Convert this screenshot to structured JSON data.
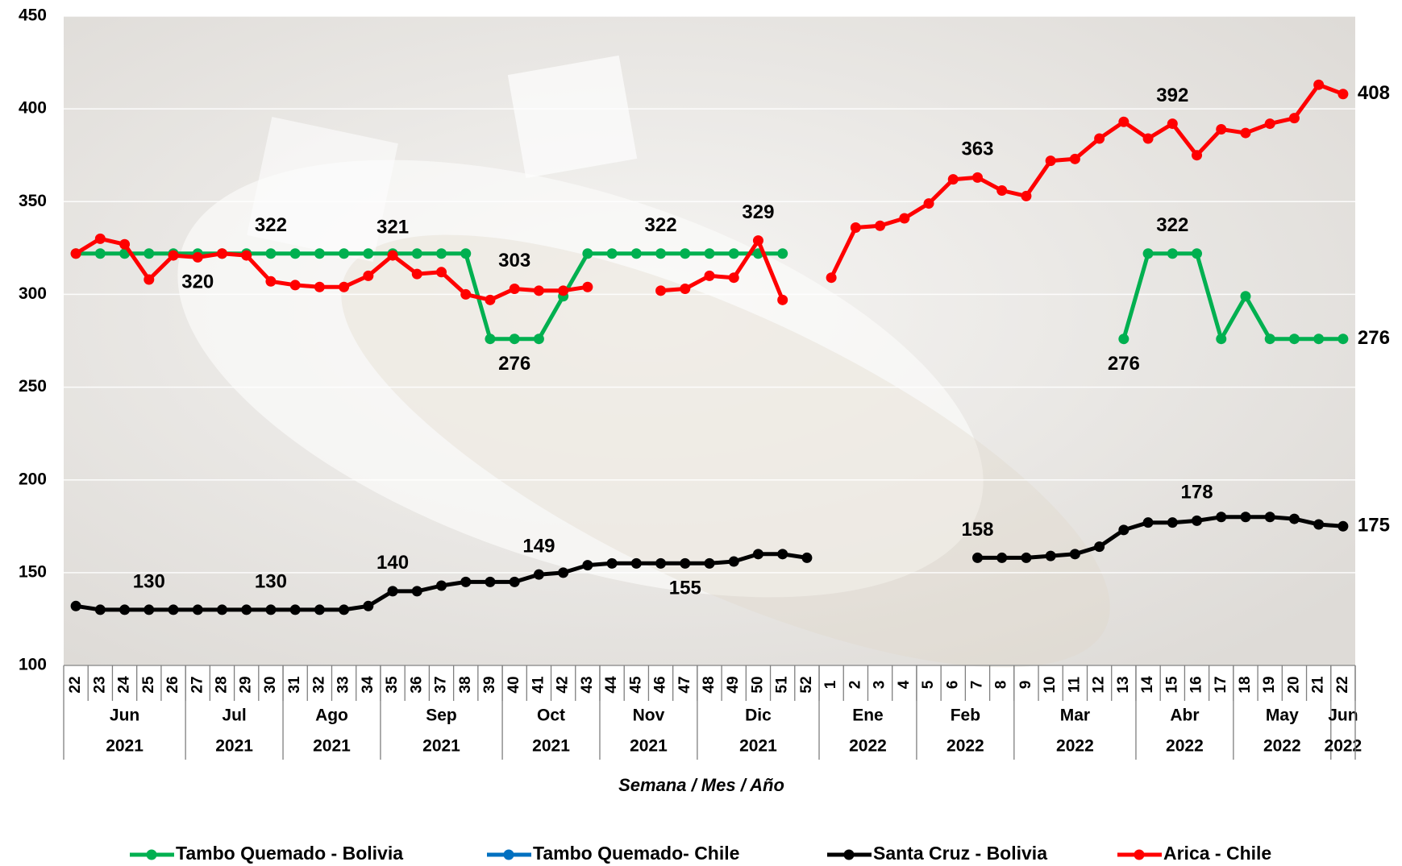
{
  "chart_data": {
    "type": "line",
    "x_label": "Semana / Mes / Año",
    "categories": [
      "22",
      "23",
      "24",
      "25",
      "26",
      "27",
      "28",
      "29",
      "30",
      "31",
      "32",
      "33",
      "34",
      "35",
      "36",
      "37",
      "38",
      "39",
      "40",
      "41",
      "42",
      "43",
      "44",
      "45",
      "46",
      "47",
      "48",
      "49",
      "50",
      "51",
      "52",
      "1",
      "2",
      "3",
      "4",
      "5",
      "6",
      "7",
      "8",
      "9",
      "10",
      "11",
      "12",
      "13",
      "14",
      "15",
      "16",
      "17",
      "18",
      "19",
      "20",
      "21",
      "22"
    ],
    "months": [
      "Jun",
      null,
      null,
      null,
      null,
      "Jul",
      null,
      null,
      null,
      "Ago",
      null,
      null,
      null,
      "Sep",
      null,
      null,
      null,
      null,
      "Oct",
      null,
      null,
      null,
      "Nov",
      null,
      null,
      null,
      "Dic",
      null,
      null,
      null,
      null,
      "Ene",
      null,
      null,
      null,
      "Feb",
      null,
      null,
      null,
      "Mar",
      null,
      null,
      null,
      null,
      "Abr",
      null,
      null,
      null,
      "May",
      null,
      null,
      null,
      "Jun"
    ],
    "years": [
      "2021",
      null,
      null,
      null,
      null,
      "2021",
      null,
      null,
      null,
      "2021",
      null,
      null,
      null,
      "2021",
      null,
      null,
      null,
      null,
      "2021",
      null,
      null,
      null,
      "2021",
      null,
      null,
      null,
      "2021",
      null,
      null,
      null,
      null,
      "2022",
      null,
      null,
      null,
      "2022",
      null,
      null,
      null,
      "2022",
      null,
      null,
      null,
      null,
      "2022",
      null,
      null,
      null,
      "2022",
      null,
      null,
      null,
      "2022"
    ],
    "ylim": [
      100,
      450
    ],
    "yticks": [
      100,
      150,
      200,
      250,
      300,
      350,
      400,
      450
    ],
    "grid": true,
    "legend": "bottom",
    "series": [
      {
        "name": "Tambo Quemado - Bolivia",
        "color": "#00b050",
        "values": [
          322,
          322,
          322,
          322,
          322,
          322,
          322,
          322,
          322,
          322,
          322,
          322,
          322,
          322,
          322,
          322,
          322,
          276,
          276,
          276,
          299,
          322,
          322,
          322,
          322,
          322,
          322,
          322,
          322,
          322,
          null,
          null,
          null,
          null,
          null,
          null,
          null,
          null,
          null,
          null,
          null,
          null,
          null,
          276,
          322,
          322,
          322,
          276,
          299,
          276,
          276,
          276,
          276
        ],
        "value_labels": [
          null,
          null,
          null,
          null,
          null,
          null,
          null,
          null,
          "322",
          null,
          null,
          null,
          null,
          null,
          null,
          null,
          null,
          null,
          "276",
          null,
          null,
          null,
          null,
          null,
          "322",
          null,
          null,
          null,
          null,
          null,
          null,
          null,
          null,
          null,
          null,
          null,
          null,
          null,
          null,
          null,
          null,
          null,
          null,
          "276",
          null,
          "322",
          null,
          null,
          null,
          null,
          null,
          null,
          "276"
        ]
      },
      {
        "name": "Tambo Quemado- Chile",
        "color": "#0070c0",
        "values": [
          null,
          null,
          null,
          null,
          null,
          null,
          null,
          null,
          null,
          null,
          null,
          null,
          null,
          null,
          null,
          null,
          null,
          null,
          null,
          null,
          null,
          null,
          null,
          null,
          null,
          null,
          null,
          null,
          null,
          null,
          null,
          null,
          null,
          null,
          null,
          null,
          null,
          null,
          null,
          null,
          null,
          null,
          null,
          null,
          null,
          null,
          null,
          null,
          null,
          null,
          null,
          null,
          null
        ]
      },
      {
        "name": "Santa Cruz - Bolivia",
        "color": "#000000",
        "values": [
          132,
          130,
          130,
          130,
          130,
          130,
          130,
          130,
          130,
          130,
          130,
          130,
          132,
          140,
          140,
          143,
          145,
          145,
          145,
          149,
          150,
          154,
          155,
          155,
          155,
          155,
          155,
          156,
          160,
          160,
          158,
          null,
          null,
          null,
          null,
          null,
          null,
          158,
          158,
          158,
          159,
          160,
          164,
          173,
          177,
          177,
          178,
          180,
          180,
          180,
          179,
          176,
          175
        ],
        "value_labels": [
          null,
          null,
          null,
          "130",
          null,
          null,
          null,
          null,
          "130",
          null,
          null,
          null,
          null,
          "140",
          null,
          null,
          null,
          null,
          null,
          "149",
          null,
          null,
          null,
          null,
          null,
          "155",
          null,
          null,
          null,
          null,
          null,
          null,
          null,
          null,
          null,
          null,
          null,
          "158",
          null,
          null,
          null,
          null,
          null,
          null,
          null,
          null,
          "178",
          null,
          null,
          null,
          null,
          null,
          "175"
        ]
      },
      {
        "name": "Arica - Chile",
        "color": "#ff0000",
        "values": [
          322,
          330,
          327,
          308,
          321,
          320,
          322,
          321,
          307,
          305,
          304,
          304,
          310,
          321,
          311,
          312,
          300,
          297,
          303,
          302,
          302,
          304,
          null,
          null,
          302,
          303,
          310,
          309,
          329,
          297,
          null,
          309,
          336,
          337,
          341,
          349,
          362,
          363,
          356,
          353,
          372,
          373,
          384,
          393,
          384,
          392,
          375,
          389,
          387,
          392,
          395,
          413,
          408
        ],
        "value_labels": [
          null,
          null,
          null,
          null,
          null,
          "320",
          null,
          null,
          null,
          null,
          null,
          null,
          null,
          "321",
          null,
          null,
          null,
          null,
          "303",
          null,
          null,
          null,
          null,
          null,
          null,
          null,
          null,
          null,
          "329",
          null,
          null,
          null,
          null,
          null,
          null,
          null,
          null,
          "363",
          null,
          null,
          null,
          null,
          null,
          null,
          null,
          "392",
          null,
          null,
          null,
          null,
          null,
          null,
          "408"
        ]
      }
    ]
  }
}
